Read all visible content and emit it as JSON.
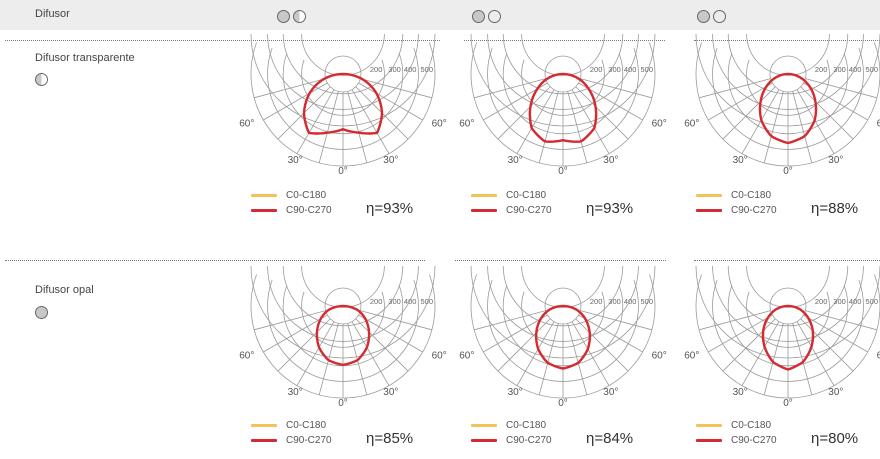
{
  "header": {
    "label": "Difusor",
    "column_icons": [
      [
        "full-circle",
        "half-circle"
      ],
      [
        "full-circle",
        "outline-circle"
      ],
      [
        "full-circle",
        "outline-circle"
      ]
    ]
  },
  "colors": {
    "c0_c180": "#f5c15a",
    "c90_c270": "#d42a33",
    "grid": "#9a9a9a",
    "divider": "#777777"
  },
  "rows": [
    {
      "label": "Difusor transparente",
      "icon": "half-circle"
    },
    {
      "label": "Difusor opal",
      "icon": "full-circle"
    }
  ],
  "diagram_labels": {
    "radial_ticks": [
      "200",
      "300",
      "400",
      "500"
    ],
    "angle_labels": [
      "60°",
      "30°",
      "0°",
      "30°",
      "60°"
    ]
  },
  "legend": {
    "c0_label": "C0-C180",
    "c90_label": "C90-C270"
  },
  "chart_data": [
    {
      "type": "polar",
      "row": 0,
      "column": 0,
      "efficiency": "η=93%",
      "rmax": 500,
      "series": [
        {
          "name": "C0-C180",
          "color": "#f5c15a",
          "angles": [
            0,
            15,
            30,
            45,
            60,
            75,
            90
          ],
          "values": [
            300,
            330,
            370,
            300,
            210,
            110,
            0
          ]
        },
        {
          "name": "C90-C270",
          "color": "#d42a33",
          "angles": [
            0,
            15,
            30,
            45,
            60,
            75,
            90
          ],
          "values": [
            300,
            330,
            370,
            300,
            210,
            110,
            0
          ]
        }
      ]
    },
    {
      "type": "polar",
      "row": 0,
      "column": 1,
      "efficiency": "η=93%",
      "rmax": 500,
      "series": [
        {
          "name": "C0-C180",
          "color": "#f5c15a",
          "angles": [
            0,
            15,
            30,
            45,
            60,
            75,
            90
          ],
          "values": [
            360,
            380,
            340,
            250,
            160,
            80,
            0
          ]
        },
        {
          "name": "C90-C270",
          "color": "#d42a33",
          "angles": [
            0,
            15,
            30,
            45,
            60,
            75,
            90
          ],
          "values": [
            360,
            380,
            340,
            250,
            160,
            80,
            0
          ]
        }
      ]
    },
    {
      "type": "polar",
      "row": 0,
      "column": 2,
      "efficiency": "η=88%",
      "rmax": 500,
      "series": [
        {
          "name": "C0-C180",
          "color": "#f5c15a",
          "angles": [
            0,
            15,
            30,
            45,
            60,
            75,
            90
          ],
          "values": [
            375,
            350,
            290,
            210,
            135,
            65,
            0
          ]
        },
        {
          "name": "C90-C270",
          "color": "#d42a33",
          "angles": [
            0,
            15,
            30,
            45,
            60,
            75,
            90
          ],
          "values": [
            375,
            350,
            290,
            210,
            135,
            65,
            0
          ]
        }
      ]
    },
    {
      "type": "polar",
      "row": 1,
      "column": 0,
      "efficiency": "η=85%",
      "rmax": 500,
      "series": [
        {
          "name": "C0-C180",
          "color": "#f5c15a",
          "angles": [
            0,
            15,
            30,
            45,
            60,
            75,
            90
          ],
          "values": [
            320,
            305,
            260,
            200,
            140,
            80,
            0
          ]
        },
        {
          "name": "C90-C270",
          "color": "#d42a33",
          "angles": [
            0,
            15,
            30,
            45,
            60,
            75,
            90
          ],
          "values": [
            320,
            305,
            260,
            200,
            140,
            80,
            0
          ]
        }
      ]
    },
    {
      "type": "polar",
      "row": 1,
      "column": 1,
      "efficiency": "η=84%",
      "rmax": 500,
      "series": [
        {
          "name": "C0-C180",
          "color": "#f5c15a",
          "angles": [
            0,
            15,
            30,
            45,
            60,
            75,
            90
          ],
          "values": [
            340,
            320,
            270,
            205,
            140,
            75,
            0
          ]
        },
        {
          "name": "C90-C270",
          "color": "#d42a33",
          "angles": [
            0,
            15,
            30,
            45,
            60,
            75,
            90
          ],
          "values": [
            340,
            320,
            270,
            205,
            140,
            75,
            0
          ]
        }
      ]
    },
    {
      "type": "polar",
      "row": 1,
      "column": 2,
      "efficiency": "η=80%",
      "rmax": 500,
      "series": [
        {
          "name": "C0-C180",
          "color": "#f5c15a",
          "angles": [
            0,
            15,
            30,
            45,
            60,
            75,
            90
          ],
          "values": [
            345,
            315,
            255,
            190,
            125,
            65,
            0
          ]
        },
        {
          "name": "C90-C270",
          "color": "#d42a33",
          "angles": [
            0,
            15,
            30,
            45,
            60,
            75,
            90
          ],
          "values": [
            345,
            315,
            255,
            190,
            125,
            65,
            0
          ]
        }
      ]
    }
  ]
}
